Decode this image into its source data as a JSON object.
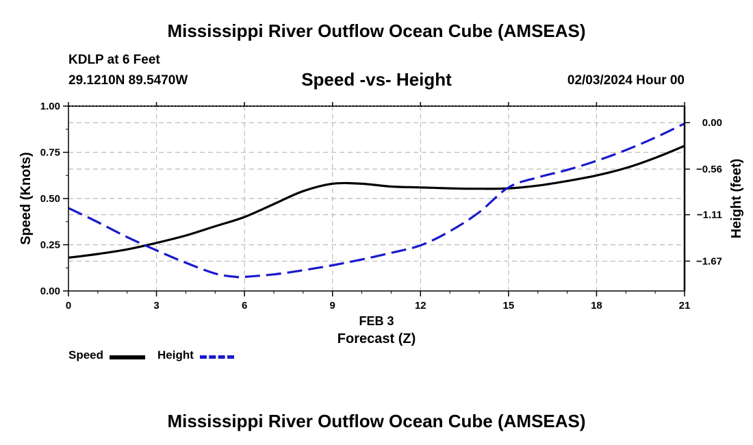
{
  "header": {
    "title": "Mississippi River Outflow Ocean Cube (AMSEAS)",
    "station": "KDLP at 6 Feet",
    "coords": "29.1210N  89.5470W",
    "subtitle": "Speed -vs- Height",
    "datetime": "02/03/2024 Hour 00"
  },
  "legend": {
    "speed_label": "Speed",
    "height_label": "Height"
  },
  "footer": {
    "title": "Mississippi River Outflow Ocean Cube (AMSEAS)"
  },
  "colors": {
    "speed": "#000000",
    "height": "#1a1acc",
    "grid": "#bbbbbb"
  },
  "chart_data": {
    "type": "line",
    "xlabel": "Forecast (Z)",
    "xsublabel": "FEB 3",
    "ylabel": "Speed (Knots)",
    "y2label": "Height (feet)",
    "xlim": [
      0,
      21
    ],
    "ylim": [
      0,
      1.0
    ],
    "y2lim": [
      -2.03,
      0.2
    ],
    "x_ticks": [
      0,
      3,
      6,
      9,
      12,
      15,
      18,
      21
    ],
    "x_tick_labels": [
      "0",
      "3",
      "6",
      "9",
      "12",
      "15",
      "18",
      "21"
    ],
    "y_ticks": [
      0.0,
      0.25,
      0.5,
      0.75,
      1.0
    ],
    "y_tick_labels": [
      "0.00",
      "0.25",
      "0.50",
      "0.75",
      "1.00"
    ],
    "y2_ticks": [
      0.0,
      -0.56,
      -1.11,
      -1.67
    ],
    "y2_tick_labels": [
      "0.00",
      "−0.56",
      "−1.11",
      "−1.67"
    ],
    "grid": true,
    "series": [
      {
        "name": "Speed",
        "axis": "left",
        "style": "solid",
        "x": [
          0,
          1,
          2,
          3,
          4,
          5,
          6,
          7,
          8,
          9,
          10,
          11,
          12,
          13,
          14,
          15,
          16,
          17,
          18,
          19,
          20,
          21
        ],
        "values": [
          0.18,
          0.2,
          0.225,
          0.26,
          0.3,
          0.35,
          0.4,
          0.47,
          0.54,
          0.58,
          0.58,
          0.565,
          0.56,
          0.555,
          0.553,
          0.555,
          0.57,
          0.595,
          0.625,
          0.665,
          0.72,
          0.785
        ]
      },
      {
        "name": "Height",
        "axis": "right",
        "style": "dashed",
        "x": [
          0,
          1,
          2,
          3,
          4,
          5,
          5.7,
          6,
          7,
          8,
          9,
          10,
          11,
          12,
          13,
          14,
          15,
          16,
          17,
          18,
          19,
          20,
          21
        ],
        "values": [
          -1.03,
          -1.2,
          -1.38,
          -1.54,
          -1.69,
          -1.82,
          -1.86,
          -1.86,
          -1.83,
          -1.78,
          -1.72,
          -1.65,
          -1.57,
          -1.48,
          -1.31,
          -1.08,
          -0.78,
          -0.66,
          -0.57,
          -0.46,
          -0.33,
          -0.18,
          -0.01
        ]
      }
    ]
  }
}
